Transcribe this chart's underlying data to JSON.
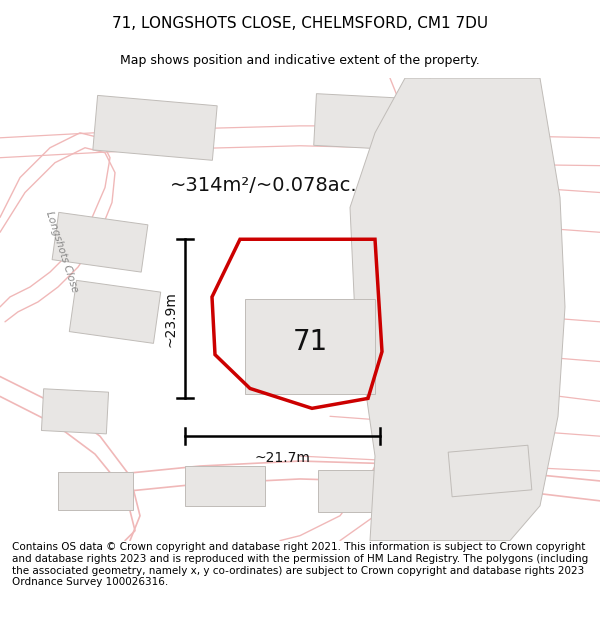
{
  "title": "71, LONGSHOTS CLOSE, CHELMSFORD, CM1 7DU",
  "subtitle": "Map shows position and indicative extent of the property.",
  "footer": "Contains OS data © Crown copyright and database right 2021. This information is subject to Crown copyright and database rights 2023 and is reproduced with the permission of HM Land Registry. The polygons (including the associated geometry, namely x, y co-ordinates) are subject to Crown copyright and database rights 2023 Ordnance Survey 100026316.",
  "area_label": "~314m²/~0.078ac.",
  "number_label": "71",
  "dim_h_label": "~21.7m",
  "dim_v_label": "~23.9m",
  "road_label": "Longshots Close",
  "bg_color": "#ffffff",
  "road_color": "#f0b8b8",
  "road_outline_color": "#d8a0a0",
  "building_fill": "#e8e6e4",
  "building_edge": "#c0bcb8",
  "property_edge": "#cc0000",
  "title_fontsize": 11,
  "subtitle_fontsize": 9,
  "footer_fontsize": 7.5
}
